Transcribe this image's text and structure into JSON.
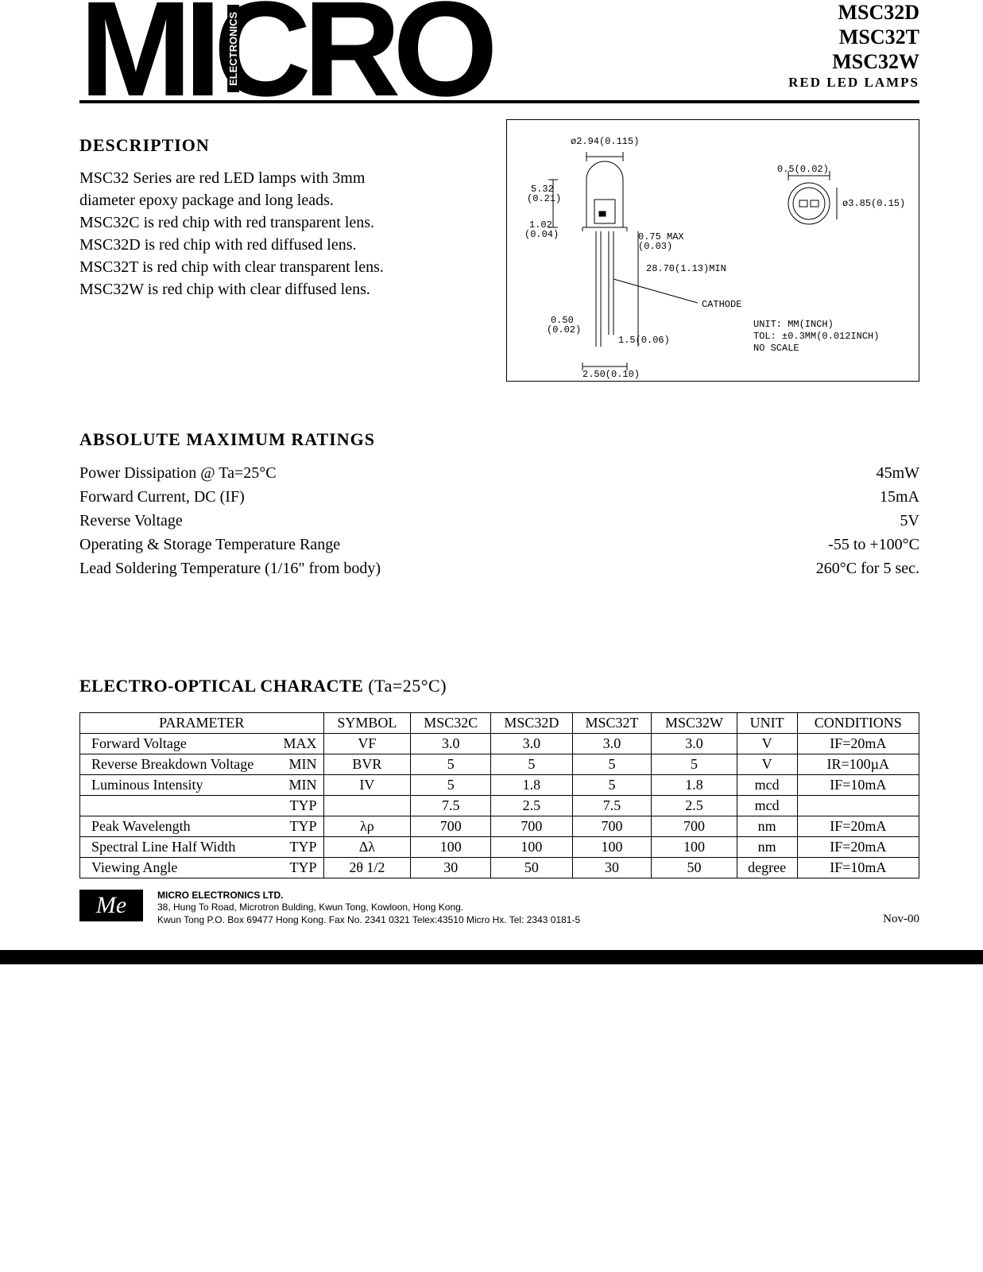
{
  "header": {
    "logo_text": "MICRO",
    "logo_inset": "ELECTRONICS",
    "parts": [
      "MSC32D",
      "MSC32T",
      "MSC32W"
    ],
    "subtitle": "RED LED LAMPS"
  },
  "description": {
    "title": "DESCRIPTION",
    "lines": [
      "MSC32 Series are red LED lamps with 3mm",
      "diameter epoxy package and long leads.",
      "MSC32C is red chip with red transparent lens.",
      "MSC32D is red chip with red diffused lens.",
      "MSC32T is red chip with clear transparent lens.",
      "MSC32W is red chip with clear diffused lens."
    ]
  },
  "diagram": {
    "labels": {
      "top_dia": "ø2.94(0.115)",
      "h532": "5.32",
      "h532b": "(0.21)",
      "h102": "1.02",
      "h102b": "(0.04)",
      "lead075": "0.75 MAX",
      "lead075b": "(0.03)",
      "min": "28.70(1.13)MIN",
      "cathode": "CATHODE",
      "h050": "0.50",
      "h050b": "(0.02)",
      "w150": "1.5(0.06)",
      "w250": "2.50(0.10)",
      "side05": "0.5(0.02)",
      "side385": "ø3.85(0.15)",
      "unit": "UNIT: MM(INCH)",
      "tol": "TOL: ±0.3MM(0.012INCH)",
      "scale": "NO SCALE"
    }
  },
  "ratings": {
    "title": "ABSOLUTE MAXIMUM RATINGS",
    "rows": [
      {
        "label": "Power Dissipation @ Ta=25°C",
        "value": "45mW"
      },
      {
        "label": "Forward Current, DC (IF)",
        "value": "15mA"
      },
      {
        "label": "Reverse Voltage",
        "value": "5V"
      },
      {
        "label": "Operating & Storage Temperature Range",
        "value": "-55 to +100°C"
      },
      {
        "label": "Lead Soldering Temperature (1/16\" from body)",
        "value": "260°C for 5 sec."
      }
    ]
  },
  "eo": {
    "title": "ELECTRO-OPTICAL CHARACTE",
    "cond": "(Ta=25°C)",
    "columns": [
      "PARAMETER",
      "SYMBOL",
      "MSC32C",
      "MSC32D",
      "MSC32T",
      "MSC32W",
      "UNIT",
      "CONDITIONS"
    ],
    "rows": [
      {
        "param": "Forward Voltage",
        "stat": "MAX",
        "symbol": "VF",
        "c": "3.0",
        "d": "3.0",
        "t": "3.0",
        "w": "3.0",
        "unit": "V",
        "cond": "IF=20mA"
      },
      {
        "param": "Reverse Breakdown Voltage",
        "stat": "MIN",
        "symbol": "BVR",
        "c": "5",
        "d": "5",
        "t": "5",
        "w": "5",
        "unit": "V",
        "cond": "IR=100µA"
      },
      {
        "param": "Luminous Intensity",
        "stat": "MIN",
        "symbol": "IV",
        "c": "5",
        "d": "1.8",
        "t": "5",
        "w": "1.8",
        "unit": "mcd",
        "cond": "IF=10mA"
      },
      {
        "param": "",
        "stat": "TYP",
        "symbol": "",
        "c": "7.5",
        "d": "2.5",
        "t": "7.5",
        "w": "2.5",
        "unit": "mcd",
        "cond": ""
      },
      {
        "param": "Peak Wavelength",
        "stat": "TYP",
        "symbol": "λρ",
        "c": "700",
        "d": "700",
        "t": "700",
        "w": "700",
        "unit": "nm",
        "cond": "IF=20mA"
      },
      {
        "param": "Spectral Line Half Width",
        "stat": "TYP",
        "symbol": "Δλ",
        "c": "100",
        "d": "100",
        "t": "100",
        "w": "100",
        "unit": "nm",
        "cond": "IF=20mA"
      },
      {
        "param": "Viewing Angle",
        "stat": "TYP",
        "symbol": "2θ 1/2",
        "c": "30",
        "d": "50",
        "t": "30",
        "w": "50",
        "unit": "degree",
        "cond": "IF=10mA"
      }
    ]
  },
  "footer": {
    "logo": "Me",
    "company": "MICRO ELECTRONICS LTD.",
    "addr1": "38, Hung To Road, Microtron Bulding, Kwun Tong, Kowloon, Hong Kong.",
    "addr2": "Kwun Tong P.O. Box 69477 Hong Kong. Fax No. 2341 0321  Telex:43510 Micro Hx.  Tel: 2343 0181-5",
    "date": "Nov-00"
  }
}
